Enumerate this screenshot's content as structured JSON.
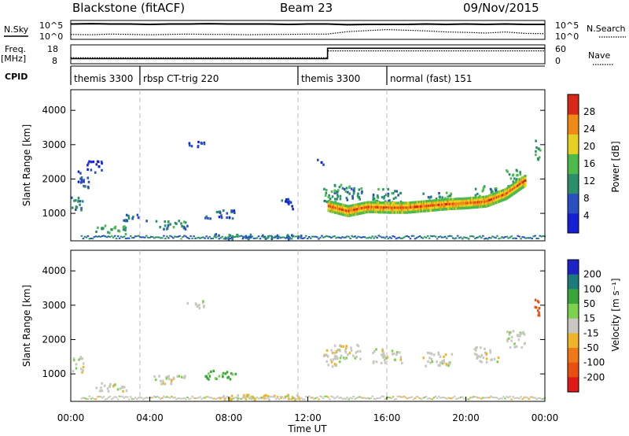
{
  "header": {
    "station": "Blackstone (fitACF)",
    "beam": "Beam 23",
    "date": "09/Nov/2015"
  },
  "chart_data": [
    {
      "type": "line",
      "panel": "noise",
      "left_label": "N.Sky",
      "right_label": "N.Search",
      "ticks_left": [
        "10^5",
        "10^0"
      ],
      "ticks_right": [
        "10^5",
        "10^0"
      ],
      "series": [
        {
          "name": "N.Sky",
          "x": [
            0,
            1,
            2,
            3,
            4,
            5,
            6,
            7,
            8,
            9,
            10,
            11,
            12,
            13,
            14,
            15,
            16,
            17,
            18,
            19,
            20,
            21,
            22,
            23,
            24
          ],
          "values": [
            4.2,
            4.3,
            4.2,
            4.2,
            4.1,
            4.2,
            4.2,
            4.3,
            4.2,
            4.2,
            4.2,
            4.1,
            4.2,
            4.2,
            4.0,
            4.1,
            4.1,
            4.1,
            4.2,
            4.1,
            4.2,
            4.1,
            4.2,
            4.1,
            4.1
          ]
        },
        {
          "name": "N.Search",
          "x": [
            0,
            1,
            2,
            3,
            4,
            5,
            6,
            7,
            8,
            9,
            10,
            11,
            12,
            13,
            14,
            15,
            16,
            17,
            18,
            19,
            20,
            21,
            22,
            23,
            24
          ],
          "values": [
            1.2,
            1.1,
            1.3,
            1.2,
            1.1,
            1.2,
            1.3,
            1.2,
            1.2,
            1.1,
            1.2,
            1.2,
            1.3,
            1.3,
            2.0,
            2.3,
            2.6,
            2.4,
            2.2,
            1.9,
            1.8,
            1.6,
            1.9,
            1.5,
            1.4
          ]
        }
      ]
    },
    {
      "type": "line",
      "panel": "frequency",
      "left_label": "Freq.",
      "left_unit": "[MHz]",
      "right_label": "Nave",
      "ticks_left": [
        "18",
        "8"
      ],
      "ticks_right": [
        "60",
        "0"
      ],
      "series": [
        {
          "name": "Freq.",
          "x": [
            0,
            13,
            13,
            24
          ],
          "values": [
            10.5,
            10.5,
            16.5,
            16.5
          ]
        },
        {
          "name": "Nave",
          "x": [
            0,
            13,
            13,
            24
          ],
          "values": [
            18,
            18,
            42,
            42
          ]
        }
      ]
    },
    {
      "type": "table",
      "panel": "cpid",
      "label": "CPID",
      "segments": [
        {
          "start": 0,
          "end": 3.5,
          "label": "themis 3300"
        },
        {
          "start": 3.5,
          "end": 11.5,
          "label": "rbsp CT-trig 220"
        },
        {
          "start": 11.5,
          "end": 16,
          "label": "themis 3300"
        },
        {
          "start": 16,
          "end": 24,
          "label": "normal (fast) 151"
        }
      ]
    },
    {
      "type": "heatmap",
      "panel": "power",
      "ylabel": "Slant Range [km]",
      "yticks": [
        1000,
        2000,
        3000,
        4000
      ],
      "ylim": [
        200,
        4600
      ],
      "colorbar_label": "Power [dB]",
      "colorbar_ticks": [
        4,
        8,
        12,
        16,
        20,
        24,
        28
      ],
      "colorbar_range": [
        0,
        32
      ],
      "colors": [
        "#1420d8",
        "#2850c0",
        "#2a8f6a",
        "#4cbb4c",
        "#e6d020",
        "#f08a14",
        "#d82818"
      ],
      "blobs": [
        {
          "t": 0.3,
          "r": 1300,
          "dt": 0.6,
          "dr": 450,
          "p": 10
        },
        {
          "t": 0.6,
          "r": 2000,
          "dt": 0.6,
          "dr": 500,
          "p": 6
        },
        {
          "t": 1.2,
          "r": 2400,
          "dt": 0.8,
          "dr": 350,
          "p": 5
        },
        {
          "t": 2.0,
          "r": 550,
          "dt": 1.6,
          "dr": 250,
          "p": 13
        },
        {
          "t": 3.2,
          "r": 900,
          "dt": 1.2,
          "dr": 200,
          "p": 9
        },
        {
          "t": 5.0,
          "r": 700,
          "dt": 1.8,
          "dr": 250,
          "p": 11
        },
        {
          "t": 6.3,
          "r": 3050,
          "dt": 0.9,
          "dr": 200,
          "p": 6
        },
        {
          "t": 7.5,
          "r": 1000,
          "dt": 1.6,
          "dr": 250,
          "p": 8
        },
        {
          "t": 9.5,
          "r": 350,
          "dt": 4.5,
          "dr": 150,
          "p": 9
        },
        {
          "t": 10.8,
          "r": 1300,
          "dt": 0.8,
          "dr": 300,
          "p": 6
        },
        {
          "t": 12.6,
          "r": 2500,
          "dt": 0.3,
          "dr": 250,
          "p": 5
        },
        {
          "t": 13.2,
          "r": 1500,
          "dt": 0.9,
          "dr": 500,
          "p": 12
        },
        {
          "t": 14.0,
          "r": 1650,
          "dt": 1.4,
          "dr": 450,
          "p": 11
        },
        {
          "t": 16.0,
          "r": 1550,
          "dt": 1.5,
          "dr": 400,
          "p": 12
        },
        {
          "t": 18.5,
          "r": 1450,
          "dt": 1.5,
          "dr": 400,
          "p": 12
        },
        {
          "t": 21.0,
          "r": 1600,
          "dt": 1.2,
          "dr": 450,
          "p": 13
        },
        {
          "t": 22.5,
          "r": 2050,
          "dt": 1.0,
          "dr": 500,
          "p": 14
        },
        {
          "t": 23.6,
          "r": 2900,
          "dt": 0.3,
          "dr": 600,
          "p": 12
        }
      ],
      "ridge": [
        {
          "t": 13.0,
          "r": 1250
        },
        {
          "t": 14.0,
          "r": 1100
        },
        {
          "t": 15.0,
          "r": 1220
        },
        {
          "t": 16.0,
          "r": 1200
        },
        {
          "t": 17.0,
          "r": 1200
        },
        {
          "t": 18.0,
          "r": 1250
        },
        {
          "t": 19.0,
          "r": 1300
        },
        {
          "t": 20.0,
          "r": 1330
        },
        {
          "t": 21.0,
          "r": 1380
        },
        {
          "t": 22.0,
          "r": 1600
        },
        {
          "t": 23.0,
          "r": 2000
        }
      ],
      "ridge_power": 27
    },
    {
      "type": "heatmap",
      "panel": "velocity",
      "xlabel": "Time UT",
      "ylabel": "Slant Range [km]",
      "xticks": [
        "00:00",
        "04:00",
        "08:00",
        "12:00",
        "16:00",
        "20:00",
        "00:00"
      ],
      "xlim": [
        0,
        24
      ],
      "yticks": [
        1000,
        2000,
        3000,
        4000
      ],
      "ylim": [
        200,
        4600
      ],
      "colorbar_label": "Velocity [m s⁻¹]",
      "colorbar_ticks": [
        200,
        100,
        50,
        15,
        -15,
        -50,
        -100,
        -200
      ],
      "colors": [
        "#1c24c8",
        "#1c7a7a",
        "#3aa63a",
        "#7cd24c",
        "#c8c8c0",
        "#f0b428",
        "#f07818",
        "#e85010",
        "#e01818"
      ],
      "blobs": [
        {
          "t": 0.3,
          "r": 1300,
          "dt": 0.6,
          "dr": 450,
          "v": 0
        },
        {
          "t": 2.0,
          "r": 650,
          "dt": 1.6,
          "dr": 250,
          "v": 0
        },
        {
          "t": 5.0,
          "r": 850,
          "dt": 1.8,
          "dr": 250,
          "v": 0
        },
        {
          "t": 6.3,
          "r": 3050,
          "dt": 0.9,
          "dr": 200,
          "v": 0
        },
        {
          "t": 7.5,
          "r": 1000,
          "dt": 1.6,
          "dr": 250,
          "v": 60
        },
        {
          "t": 9.5,
          "r": 350,
          "dt": 4.5,
          "dr": 150,
          "v": -30
        },
        {
          "t": 13.2,
          "r": 1500,
          "dt": 0.9,
          "dr": 500,
          "v": 0
        },
        {
          "t": 14.0,
          "r": 1650,
          "dt": 1.4,
          "dr": 450,
          "v": 0
        },
        {
          "t": 16.0,
          "r": 1550,
          "dt": 1.5,
          "dr": 400,
          "v": 0
        },
        {
          "t": 18.5,
          "r": 1450,
          "dt": 1.5,
          "dr": 400,
          "v": 0
        },
        {
          "t": 21.0,
          "r": 1600,
          "dt": 1.2,
          "dr": 450,
          "v": 0
        },
        {
          "t": 22.5,
          "r": 2050,
          "dt": 1.0,
          "dr": 500,
          "v": 0
        },
        {
          "t": 23.6,
          "r": 2900,
          "dt": 0.3,
          "dr": 600,
          "v": -150
        }
      ]
    }
  ]
}
